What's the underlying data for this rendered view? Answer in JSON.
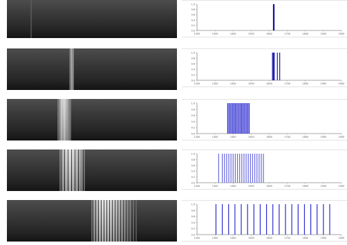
{
  "chart_data": [
    {
      "type": "bar",
      "y_tick_labels": [
        "1.0",
        "0.8",
        "0.6",
        "0.4",
        "0.2",
        "0.0"
      ],
      "x_tick_labels": [
        "1200",
        "1300",
        "1400",
        "1500",
        "1600",
        "1700",
        "1800",
        "1900",
        "2000"
      ],
      "bars": [
        {
          "x": 1623,
          "value": 1.0
        },
        {
          "x": 1627,
          "value": 1.0
        }
      ],
      "grid": false,
      "colors": {
        "bar": "#1010a0",
        "axis": "#8a8a8a"
      }
    },
    {
      "type": "bar",
      "y_tick_labels": [
        "1.0",
        "0.8",
        "0.6",
        "0.4",
        "0.2",
        "0.0"
      ],
      "x_tick_labels": [
        "1200",
        "1300",
        "1400",
        "1500",
        "1600",
        "1700",
        "1800",
        "1900",
        "2000"
      ],
      "bars": [
        {
          "x": 1618,
          "value": 1.0
        },
        {
          "x": 1623,
          "value": 1.0
        },
        {
          "x": 1628,
          "value": 1.0
        },
        {
          "x": 1645,
          "value": 1.0
        },
        {
          "x": 1658,
          "value": 1.0
        }
      ],
      "grid": false,
      "colors": {
        "bar": "#1414a8",
        "axis": "#8a8a8a"
      }
    },
    {
      "type": "bar",
      "y_tick_labels": [
        "1.0",
        "0.8",
        "0.6",
        "0.4",
        "0.2",
        "0.0"
      ],
      "x_tick_labels": [
        "1200",
        "1300",
        "1400",
        "1500",
        "1600",
        "1700",
        "1800",
        "1900",
        "2000"
      ],
      "bars": [
        {
          "x": 1370,
          "value": 1.0
        },
        {
          "x": 1377,
          "value": 1.0
        },
        {
          "x": 1384,
          "value": 1.0
        },
        {
          "x": 1391,
          "value": 1.0
        },
        {
          "x": 1398,
          "value": 1.0
        },
        {
          "x": 1405,
          "value": 1.0
        },
        {
          "x": 1412,
          "value": 1.0
        },
        {
          "x": 1419,
          "value": 1.0
        },
        {
          "x": 1426,
          "value": 1.0
        },
        {
          "x": 1433,
          "value": 1.0
        },
        {
          "x": 1440,
          "value": 1.0
        },
        {
          "x": 1447,
          "value": 1.0
        },
        {
          "x": 1454,
          "value": 1.0
        },
        {
          "x": 1461,
          "value": 1.0
        },
        {
          "x": 1468,
          "value": 1.0
        },
        {
          "x": 1475,
          "value": 1.0
        },
        {
          "x": 1482,
          "value": 1.0
        },
        {
          "x": 1489,
          "value": 1.0
        }
      ],
      "grid": false,
      "colors": {
        "bar": "#2a2ad0",
        "axis": "#8a8a8a"
      }
    },
    {
      "type": "bar",
      "y_tick_labels": [
        "1.0",
        "0.8",
        "0.6",
        "0.4",
        "0.2",
        "0.0"
      ],
      "x_tick_labels": [
        "1200",
        "1300",
        "1400",
        "1500",
        "1600",
        "1700",
        "1800",
        "1900",
        "2000"
      ],
      "bars": [
        {
          "x": 1320,
          "value": 1.0
        },
        {
          "x": 1340,
          "value": 1.0
        },
        {
          "x": 1352,
          "value": 1.0
        },
        {
          "x": 1364,
          "value": 1.0
        },
        {
          "x": 1376,
          "value": 1.0
        },
        {
          "x": 1388,
          "value": 1.0
        },
        {
          "x": 1400,
          "value": 1.0
        },
        {
          "x": 1412,
          "value": 1.0
        },
        {
          "x": 1424,
          "value": 1.0
        },
        {
          "x": 1436,
          "value": 1.0
        },
        {
          "x": 1448,
          "value": 1.0
        },
        {
          "x": 1460,
          "value": 1.0
        },
        {
          "x": 1472,
          "value": 1.0
        },
        {
          "x": 1484,
          "value": 1.0
        },
        {
          "x": 1496,
          "value": 1.0
        },
        {
          "x": 1508,
          "value": 1.0
        },
        {
          "x": 1520,
          "value": 1.0
        },
        {
          "x": 1532,
          "value": 1.0
        },
        {
          "x": 1544,
          "value": 1.0
        },
        {
          "x": 1556,
          "value": 1.0
        },
        {
          "x": 1568,
          "value": 1.0
        }
      ],
      "grid": false,
      "colors": {
        "bar": "#6a6ae0",
        "axis": "#8a8a8a"
      }
    },
    {
      "type": "bar",
      "y_tick_labels": [
        "1.0",
        "0.8",
        "0.6",
        "0.4",
        "0.2",
        "0.0"
      ],
      "x_tick_labels": [
        "1200",
        "1300",
        "1400",
        "1500",
        "1600",
        "1700",
        "1800",
        "1900",
        "2000"
      ],
      "bars": [
        {
          "x": 1305,
          "value": 1.0
        },
        {
          "x": 1340,
          "value": 1.0
        },
        {
          "x": 1375,
          "value": 1.0
        },
        {
          "x": 1410,
          "value": 1.0
        },
        {
          "x": 1445,
          "value": 1.0
        },
        {
          "x": 1480,
          "value": 1.0
        },
        {
          "x": 1515,
          "value": 1.0
        },
        {
          "x": 1550,
          "value": 1.0
        },
        {
          "x": 1585,
          "value": 1.0
        },
        {
          "x": 1620,
          "value": 1.0
        },
        {
          "x": 1655,
          "value": 1.0
        },
        {
          "x": 1690,
          "value": 1.0
        },
        {
          "x": 1725,
          "value": 1.0
        },
        {
          "x": 1760,
          "value": 1.0
        },
        {
          "x": 1795,
          "value": 1.0
        },
        {
          "x": 1830,
          "value": 1.0
        },
        {
          "x": 1865,
          "value": 1.0
        },
        {
          "x": 1900,
          "value": 1.0
        },
        {
          "x": 1935,
          "value": 1.0
        }
      ],
      "grid": false,
      "colors": {
        "bar": "#2a2ad0",
        "axis": "#8a8a8a"
      }
    }
  ],
  "strips": [
    {
      "lines": [
        {
          "x": 1315,
          "brightness": 0.35,
          "width": 2
        }
      ]
    },
    {
      "lines": [
        {
          "x": 1498,
          "brightness": 0.45,
          "width": 4
        },
        {
          "x": 1505,
          "brightness": 0.7,
          "width": 4
        },
        {
          "x": 1512,
          "brightness": 0.55,
          "width": 3
        }
      ]
    },
    {
      "lines": [
        {
          "x": 1443,
          "brightness": 0.5,
          "width": 3
        },
        {
          "x": 1451,
          "brightness": 0.7,
          "width": 3
        },
        {
          "x": 1459,
          "brightness": 0.85,
          "width": 3
        },
        {
          "x": 1467,
          "brightness": 0.9,
          "width": 3
        },
        {
          "x": 1475,
          "brightness": 0.85,
          "width": 3
        },
        {
          "x": 1483,
          "brightness": 0.75,
          "width": 3
        },
        {
          "x": 1491,
          "brightness": 0.6,
          "width": 3
        },
        {
          "x": 1499,
          "brightness": 0.5,
          "width": 3
        }
      ]
    },
    {
      "lines": [
        {
          "x": 1452,
          "brightness": 0.55,
          "width": 2
        },
        {
          "x": 1460,
          "brightness": 0.7,
          "width": 2
        },
        {
          "x": 1468,
          "brightness": 0.8,
          "width": 2
        },
        {
          "x": 1476,
          "brightness": 0.88,
          "width": 2
        },
        {
          "x": 1484,
          "brightness": 0.92,
          "width": 2
        },
        {
          "x": 1492,
          "brightness": 0.95,
          "width": 2
        },
        {
          "x": 1500,
          "brightness": 0.95,
          "width": 2
        },
        {
          "x": 1508,
          "brightness": 0.92,
          "width": 2
        },
        {
          "x": 1516,
          "brightness": 0.9,
          "width": 2
        },
        {
          "x": 1524,
          "brightness": 0.85,
          "width": 2
        },
        {
          "x": 1532,
          "brightness": 0.8,
          "width": 2
        },
        {
          "x": 1540,
          "brightness": 0.75,
          "width": 2
        },
        {
          "x": 1548,
          "brightness": 0.68,
          "width": 2
        },
        {
          "x": 1556,
          "brightness": 0.6,
          "width": 2
        },
        {
          "x": 1564,
          "brightness": 0.5,
          "width": 2
        }
      ]
    },
    {
      "lines": [
        {
          "x": 1600,
          "brightness": 0.5,
          "width": 2
        },
        {
          "x": 1613,
          "brightness": 0.7,
          "width": 3
        },
        {
          "x": 1626,
          "brightness": 0.8,
          "width": 3
        },
        {
          "x": 1639,
          "brightness": 0.9,
          "width": 3
        },
        {
          "x": 1652,
          "brightness": 0.95,
          "width": 3
        },
        {
          "x": 1665,
          "brightness": 0.95,
          "width": 3
        },
        {
          "x": 1678,
          "brightness": 0.92,
          "width": 3
        },
        {
          "x": 1691,
          "brightness": 0.9,
          "width": 3
        },
        {
          "x": 1704,
          "brightness": 0.85,
          "width": 3
        },
        {
          "x": 1717,
          "brightness": 0.8,
          "width": 3
        },
        {
          "x": 1730,
          "brightness": 0.75,
          "width": 3
        },
        {
          "x": 1743,
          "brightness": 0.7,
          "width": 3
        },
        {
          "x": 1756,
          "brightness": 0.62,
          "width": 3
        },
        {
          "x": 1769,
          "brightness": 0.55,
          "width": 3
        },
        {
          "x": 1782,
          "brightness": 0.5,
          "width": 3
        },
        {
          "x": 1795,
          "brightness": 0.45,
          "width": 2
        },
        {
          "x": 1808,
          "brightness": 0.4,
          "width": 2
        }
      ]
    }
  ]
}
